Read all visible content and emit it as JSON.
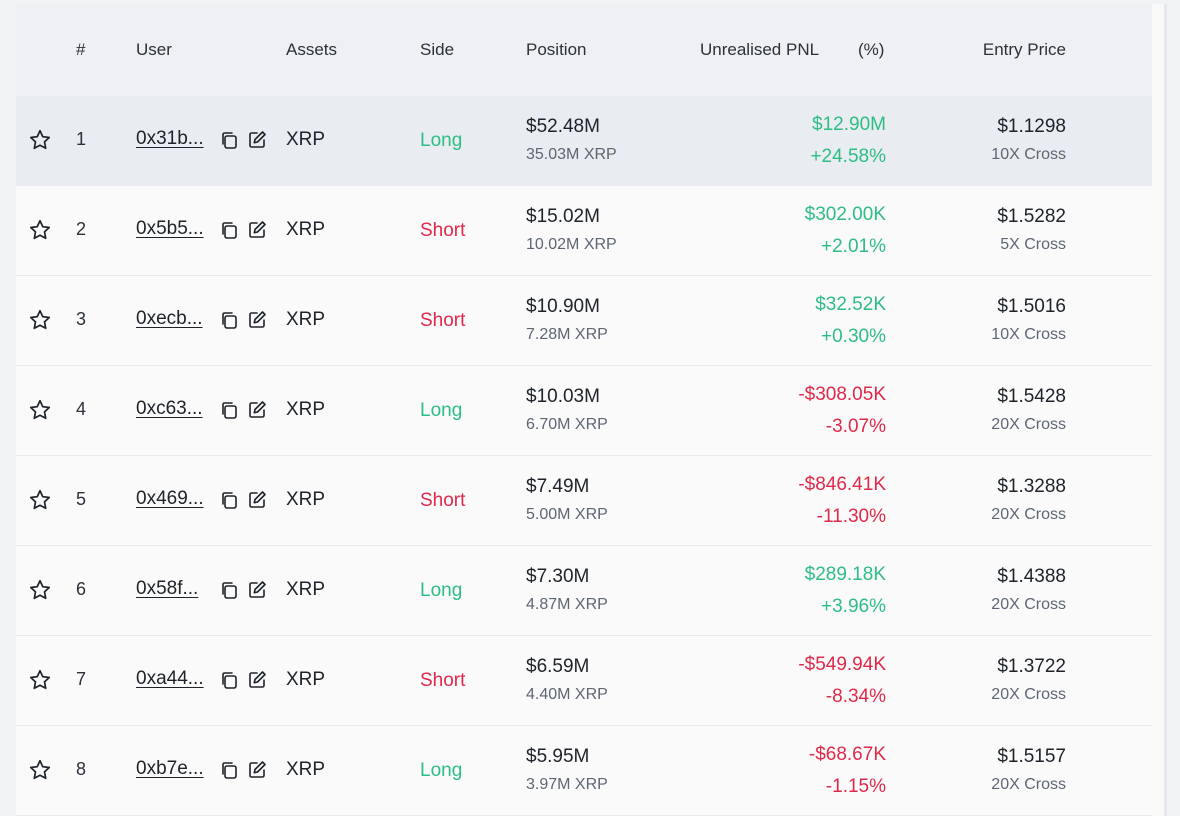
{
  "table": {
    "headers": {
      "rank": "#",
      "user": "User",
      "assets": "Assets",
      "side": "Side",
      "position": "Position",
      "pnl": "Unrealised PNL",
      "pnl_pct": "(%)",
      "entry": "Entry Price"
    },
    "rows": [
      {
        "rank": "1",
        "user": "0x31b...",
        "asset": "XRP",
        "side": "Long",
        "position_usd": "$52.48M",
        "position_qty": "35.03M XRP",
        "pnl_usd": "$12.90M",
        "pnl_pct": "+24.58%",
        "entry_price": "$1.1298",
        "leverage": "10X Cross"
      },
      {
        "rank": "2",
        "user": "0x5b5...",
        "asset": "XRP",
        "side": "Short",
        "position_usd": "$15.02M",
        "position_qty": "10.02M XRP",
        "pnl_usd": "$302.00K",
        "pnl_pct": "+2.01%",
        "entry_price": "$1.5282",
        "leverage": "5X Cross"
      },
      {
        "rank": "3",
        "user": "0xecb...",
        "asset": "XRP",
        "side": "Short",
        "position_usd": "$10.90M",
        "position_qty": "7.28M XRP",
        "pnl_usd": "$32.52K",
        "pnl_pct": "+0.30%",
        "entry_price": "$1.5016",
        "leverage": "10X Cross"
      },
      {
        "rank": "4",
        "user": "0xc63...",
        "asset": "XRP",
        "side": "Long",
        "position_usd": "$10.03M",
        "position_qty": "6.70M XRP",
        "pnl_usd": "-$308.05K",
        "pnl_pct": "-3.07%",
        "entry_price": "$1.5428",
        "leverage": "20X Cross"
      },
      {
        "rank": "5",
        "user": "0x469...",
        "asset": "XRP",
        "side": "Short",
        "position_usd": "$7.49M",
        "position_qty": "5.00M XRP",
        "pnl_usd": "-$846.41K",
        "pnl_pct": "-11.30%",
        "entry_price": "$1.3288",
        "leverage": "20X Cross"
      },
      {
        "rank": "6",
        "user": "0x58f...",
        "asset": "XRP",
        "side": "Long",
        "position_usd": "$7.30M",
        "position_qty": "4.87M XRP",
        "pnl_usd": "$289.18K",
        "pnl_pct": "+3.96%",
        "entry_price": "$1.4388",
        "leverage": "20X Cross"
      },
      {
        "rank": "7",
        "user": "0xa44...",
        "asset": "XRP",
        "side": "Short",
        "position_usd": "$6.59M",
        "position_qty": "4.40M XRP",
        "pnl_usd": "-$549.94K",
        "pnl_pct": "-8.34%",
        "entry_price": "$1.3722",
        "leverage": "20X Cross"
      },
      {
        "rank": "8",
        "user": "0xb7e...",
        "asset": "XRP",
        "side": "Long",
        "position_usd": "$5.95M",
        "position_qty": "3.97M XRP",
        "pnl_usd": "-$68.67K",
        "pnl_pct": "-1.15%",
        "entry_price": "$1.5157",
        "leverage": "20X Cross"
      }
    ]
  },
  "icons": {
    "favorite": "star-outline-icon",
    "copy": "copy-icon",
    "edit": "edit-icon"
  },
  "colors": {
    "long": "#2ebd85",
    "short": "#e0294a",
    "gain": "#2ebd85",
    "loss": "#e0294a"
  }
}
